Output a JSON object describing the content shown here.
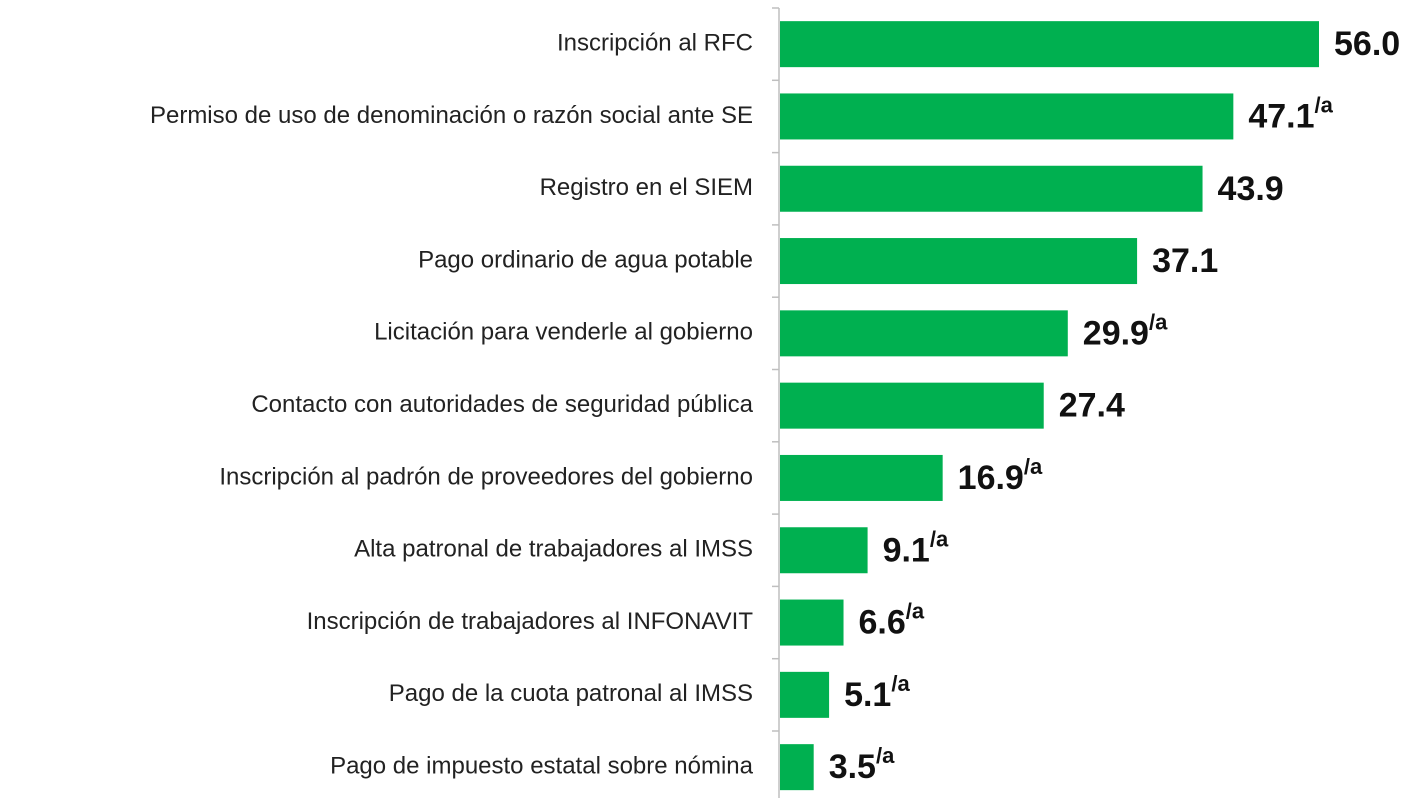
{
  "chart_data": {
    "type": "bar",
    "orientation": "horizontal",
    "color": "#00b050",
    "categories": [
      "Inscripción al RFC",
      "Permiso de uso de denominación o razón social ante SE",
      "Registro en el SIEM",
      "Pago ordinario de agua potable",
      "Licitación para venderle al gobierno",
      "Contacto con autoridades de seguridad pública",
      "Inscripción al padrón de proveedores del gobierno",
      "Alta patronal de trabajadores al IMSS",
      "Inscripción de trabajadores al INFONAVIT",
      "Pago de la cuota patronal al IMSS",
      "Pago de impuesto estatal sobre nómina"
    ],
    "values": [
      56.0,
      47.1,
      43.9,
      37.1,
      29.9,
      27.4,
      16.9,
      9.1,
      6.6,
      5.1,
      3.5
    ],
    "value_labels": [
      "56.0",
      "47.1",
      "43.9",
      "37.1",
      "29.9",
      "27.4",
      "16.9",
      "9.1",
      "6.6",
      "5.1",
      "3.5"
    ],
    "value_notes": [
      null,
      "/a",
      null,
      null,
      "/a",
      null,
      "/a",
      "/a",
      "/a",
      "/a",
      "/a"
    ]
  }
}
